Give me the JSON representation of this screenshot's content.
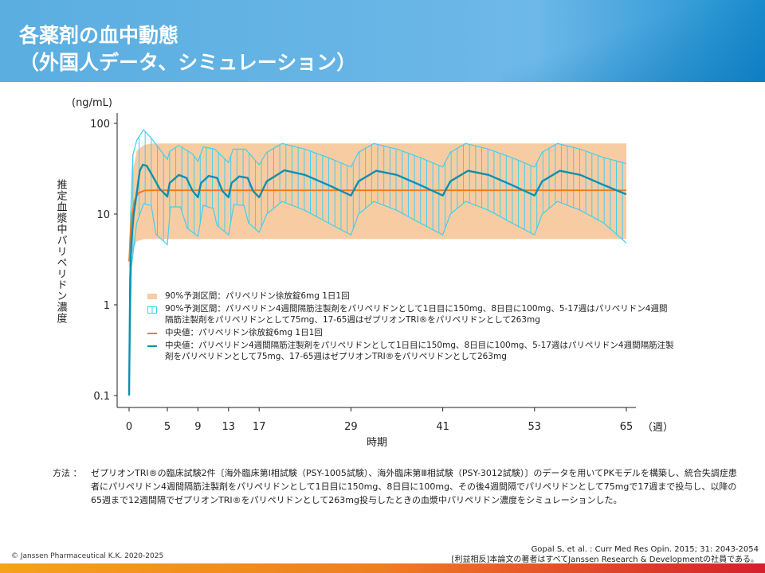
{
  "header": {
    "title": "各薬剤の血中動態\n（外国人データ、シミュレーション）"
  },
  "chart_data": {
    "type": "line",
    "y_unit": "(ng/mL)",
    "x_unit": "（週）",
    "xlabel": "時期",
    "ylabel": "推定血漿中パリペリドン濃度",
    "y_scale": "log",
    "ylim": [
      0.1,
      100
    ],
    "xlim": [
      0,
      65
    ],
    "x_ticks": [
      "0",
      "5",
      "9",
      "13",
      "17",
      "29",
      "41",
      "53",
      "65"
    ],
    "y_ticks": [
      "0.1",
      "1",
      "10",
      "100"
    ],
    "colors": {
      "oral_band": "#f8cca2",
      "lai_band": "#3fd0f0",
      "oral_median": "#ef7d22",
      "lai_median": "#0e8fb0"
    },
    "series": [
      {
        "name": "90%予測区間：パリペリドン徐放錠6mg 1日1回",
        "kind": "band",
        "upper": [
          [
            0,
            5
          ],
          [
            0.5,
            30
          ],
          [
            1,
            50
          ],
          [
            2,
            58
          ],
          [
            3,
            60
          ],
          [
            65,
            60
          ]
        ],
        "lower": [
          [
            0,
            2.5
          ],
          [
            0.5,
            4
          ],
          [
            1,
            5
          ],
          [
            2,
            5.3
          ],
          [
            65,
            5.3
          ]
        ]
      },
      {
        "name": "90%予測区間：パリペリドン4週間隔筋注製剤をパリペリドンとして1日目に150mg、8日目に100mg、5-17週はパリペリドン4週間隔筋注製剤をパリペリドンとして75mg、17-65週はゼプリオンTRI®をパリペリドンとして263mg",
        "kind": "hatched-band",
        "upper": [
          [
            0,
            0.1
          ],
          [
            0.2,
            10
          ],
          [
            0.5,
            45
          ],
          [
            1,
            65
          ],
          [
            1.9,
            85
          ],
          [
            3,
            67
          ],
          [
            5,
            40
          ],
          [
            5.3,
            49
          ],
          [
            6.5,
            57
          ],
          [
            8.3,
            46
          ],
          [
            9,
            38
          ],
          [
            9.7,
            55
          ],
          [
            11.2,
            52
          ],
          [
            13,
            37
          ],
          [
            13.6,
            52
          ],
          [
            15.2,
            52
          ],
          [
            17,
            35
          ],
          [
            18,
            48
          ],
          [
            20,
            60
          ],
          [
            23,
            52
          ],
          [
            26,
            42
          ],
          [
            29,
            33
          ],
          [
            30,
            48
          ],
          [
            32,
            60
          ],
          [
            35,
            52
          ],
          [
            38,
            42
          ],
          [
            41,
            33
          ],
          [
            42,
            48
          ],
          [
            44,
            60
          ],
          [
            47,
            52
          ],
          [
            50,
            42
          ],
          [
            53,
            33
          ],
          [
            54,
            48
          ],
          [
            56,
            60
          ],
          [
            59,
            52
          ],
          [
            62,
            42
          ],
          [
            65,
            36
          ]
        ],
        "lower": [
          [
            0,
            0.1
          ],
          [
            0.3,
            2.6
          ],
          [
            1,
            8
          ],
          [
            1.9,
            13
          ],
          [
            2.9,
            12.5
          ],
          [
            3.5,
            6
          ],
          [
            5,
            4.6
          ],
          [
            5.4,
            12
          ],
          [
            6.7,
            12
          ],
          [
            7.6,
            7
          ],
          [
            9,
            5.7
          ],
          [
            9.7,
            12.5
          ],
          [
            11,
            11.5
          ],
          [
            11.5,
            7.5
          ],
          [
            13,
            5.9
          ],
          [
            13.7,
            12.7
          ],
          [
            15,
            12.5
          ],
          [
            15.6,
            8
          ],
          [
            17,
            6.3
          ],
          [
            18,
            10
          ],
          [
            20,
            13.8
          ],
          [
            23,
            11
          ],
          [
            26,
            8
          ],
          [
            29,
            5.9
          ],
          [
            30,
            10
          ],
          [
            32,
            13.8
          ],
          [
            35,
            11
          ],
          [
            38,
            8
          ],
          [
            41,
            5.9
          ],
          [
            42,
            10
          ],
          [
            44,
            13.8
          ],
          [
            47,
            11
          ],
          [
            50,
            8
          ],
          [
            53,
            5.9
          ],
          [
            54,
            10
          ],
          [
            56,
            13.8
          ],
          [
            59,
            11
          ],
          [
            62,
            8
          ],
          [
            65,
            4.8
          ]
        ]
      },
      {
        "name": "中央値：パリペリドン徐放錠6mg 1日1回",
        "kind": "line",
        "points": [
          [
            0,
            3
          ],
          [
            0.3,
            9
          ],
          [
            0.7,
            14
          ],
          [
            1.2,
            17
          ],
          [
            2,
            18.2
          ],
          [
            3,
            18.3
          ],
          [
            65,
            18.3
          ]
        ]
      },
      {
        "name": "中央値：パリペリドン4週間隔筋注製剤をパリペリドンとして1日目に150mg、8日目に100mg、5-17週はパリペリドン4週間隔筋注製剤をパリペリドンとして75mg、17-65週はゼプリオンTRI®をパリペリドンとして263mg",
        "kind": "line",
        "points": [
          [
            0,
            0.1
          ],
          [
            0.15,
            2
          ],
          [
            0.3,
            5
          ],
          [
            0.6,
            10
          ],
          [
            1,
            17
          ],
          [
            1.4,
            30
          ],
          [
            1.8,
            35
          ],
          [
            2.3,
            34
          ],
          [
            3,
            27
          ],
          [
            4,
            19
          ],
          [
            5,
            15.6
          ],
          [
            5.3,
            22
          ],
          [
            6.5,
            27
          ],
          [
            7.5,
            25
          ],
          [
            8.3,
            18
          ],
          [
            9,
            15.3
          ],
          [
            9.4,
            22
          ],
          [
            10.4,
            26.3
          ],
          [
            11.5,
            25
          ],
          [
            12.2,
            18
          ],
          [
            13,
            15.3
          ],
          [
            13.4,
            22
          ],
          [
            14.4,
            26
          ],
          [
            15.5,
            25
          ],
          [
            16.2,
            18
          ],
          [
            17,
            15.3
          ],
          [
            18,
            23
          ],
          [
            20.3,
            30.4
          ],
          [
            23,
            27
          ],
          [
            26,
            21
          ],
          [
            29,
            16
          ],
          [
            30,
            23
          ],
          [
            32.3,
            30
          ],
          [
            35,
            27
          ],
          [
            38,
            21
          ],
          [
            41,
            16
          ],
          [
            42,
            23
          ],
          [
            44.3,
            30
          ],
          [
            47,
            27
          ],
          [
            50,
            21
          ],
          [
            53,
            16
          ],
          [
            54,
            23
          ],
          [
            56.3,
            30
          ],
          [
            59,
            27
          ],
          [
            62,
            21
          ],
          [
            65,
            16.5
          ]
        ]
      }
    ]
  },
  "legend": [
    "90%予測区間：パリペリドン徐放錠6mg 1日1回",
    "90%予測区間：パリペリドン4週間隔筋注製剤をパリペリドンとして1日目に150mg、8日目に100mg、5-17週はパリペリドン4週間隔筋注製剤をパリペリドンとして75mg、17-65週はゼプリオンTRI®をパリペリドンとして263mg",
    "中央値：パリペリドン徐放錠6mg 1日1回",
    "中央値：パリペリドン4週間隔筋注製剤をパリペリドンとして1日目に150mg、8日目に100mg、5-17週はパリペリドン4週間隔筋注製剤をパリペリドンとして75mg、17-65週はゼプリオンTRI®をパリペリドンとして263mg"
  ],
  "method": {
    "label": "方法 ：",
    "text": "ゼプリオンTRI®の臨床試験2件〔海外臨床第Ⅰ相試験（PSY-1005試験）、海外臨床第Ⅲ相試験（PSY-3012試験）〕のデータを用いてPKモデルを構築し、統合失調症患者にパリペリドン4週間隔筋注製剤をパリペリドンとして1日目に150mg、8日目に100mg、その後4週間隔でパリペリドンとして75mgで17週まで投与し、以降の65週まで12週間隔でゼプリオンTRI®をパリペリドンとして263mg投与したときの血漿中パリペリドン濃度をシミュレーションした。"
  },
  "footer": {
    "copyright": "© Janssen Pharmaceutical K.K. 2020-2025",
    "reference": "Gopal S, et al. : Curr Med Res Opin. 2015; 31: 2043-2054",
    "coi": "[利益相反]本論文の著者はすべてJanssen Research & Developmentの社員である。"
  }
}
